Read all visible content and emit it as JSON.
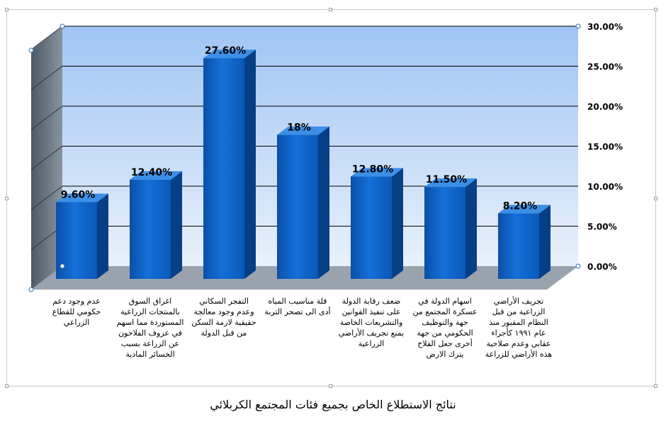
{
  "chart_data": {
    "type": "bar",
    "style": "3d-column",
    "categories": [
      "عدم وجود دعم حكومي للقطاع الزراعي",
      "اغراق السوق بالمنتجات الزراعية المستوردة مما اسهم في عزوف الفلاحون عن الزراعة بسبب الخسائر المادية",
      "التفجر السكاني وعدم وجود معالجة حقيقية لازمة السكن من قبل الدولة",
      "قلة مناسيب المياه أدى الى تصحر التربة",
      "ضعف رقابة الدولة على تنفيذ القوانين والتشريعات الخاصة بمنع تجريف الأراضي الزراعية",
      "اسهام الدولة في عسكرة المجتمع من جهة والتوظيف الحكومي من جهة أخرى جعل الفلاح يترك الارض",
      "تجريف الأراضي الزراعية من قبل النظام المقبور منذ عام ١٩٩١ كأجراء عقابي وعدم صلاحية هذه الأراضي للزراعة"
    ],
    "values": [
      9.6,
      12.4,
      27.6,
      18,
      12.8,
      11.5,
      8.2
    ],
    "data_labels": [
      "9.60%",
      "12.40%",
      "27.60%",
      "18%",
      "12.80%",
      "11.50%",
      "8.20%"
    ],
    "y_ticks": [
      "0.00%",
      "5.00%",
      "10.00%",
      "15.00%",
      "20.00%",
      "25.00%",
      "30.00%"
    ],
    "ylim": [
      0,
      30
    ],
    "y_axis_position": "right",
    "grid": true,
    "legend": "none",
    "colors": {
      "bar_front": "#0a62c4",
      "bar_side": "#063f86",
      "bar_top": "#3b8fe6",
      "wall_top": "#9fc4f4",
      "wall_bottom": "#e9f1fb",
      "side_wall": "#6d7885",
      "floor": "#9aa3ad",
      "gridline": "#000000"
    }
  },
  "caption": "نتائج الاستطلاع الخاص بجميع فئات المجتمع الكربلائي"
}
